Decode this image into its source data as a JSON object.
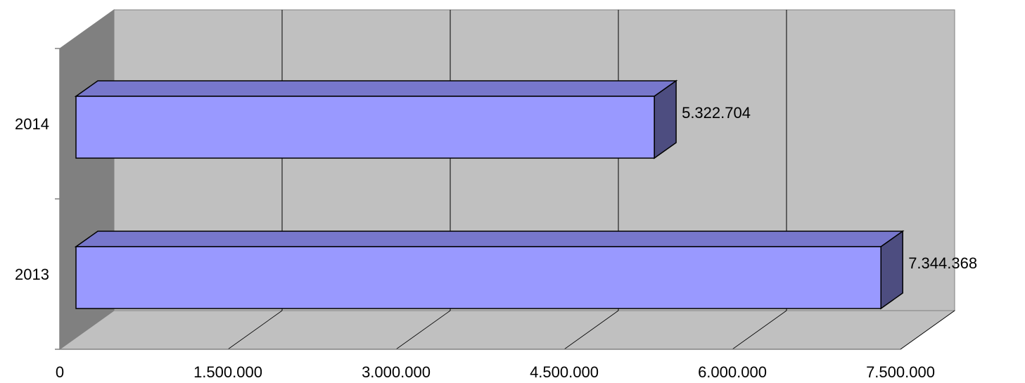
{
  "chart_data": {
    "type": "bar",
    "orientation": "horizontal",
    "style": "3d",
    "categories": [
      "2013",
      "2014"
    ],
    "values": [
      7344368,
      5322704
    ],
    "data_labels": [
      "7.344.368",
      "5.322.704"
    ],
    "title": "",
    "xlabel": "",
    "ylabel": "",
    "xlim": [
      0,
      7500000
    ],
    "x_ticks": [
      {
        "value": 0,
        "label": "0"
      },
      {
        "value": 1500000,
        "label": "1.500.000"
      },
      {
        "value": 3000000,
        "label": "3.000.000"
      },
      {
        "value": 4500000,
        "label": "4.500.000"
      },
      {
        "value": 6000000,
        "label": "6.000.000"
      },
      {
        "value": 7500000,
        "label": "7.500.000"
      }
    ],
    "grid": true,
    "legend": "none",
    "colors": {
      "bar_front": "#9999FF",
      "bar_top": "#7777CC",
      "bar_side": "#4D4D80",
      "back_wall": "#C0C0C0",
      "side_wall": "#808080",
      "floor": "#C0C0C0",
      "grid_line": "#000000"
    }
  }
}
